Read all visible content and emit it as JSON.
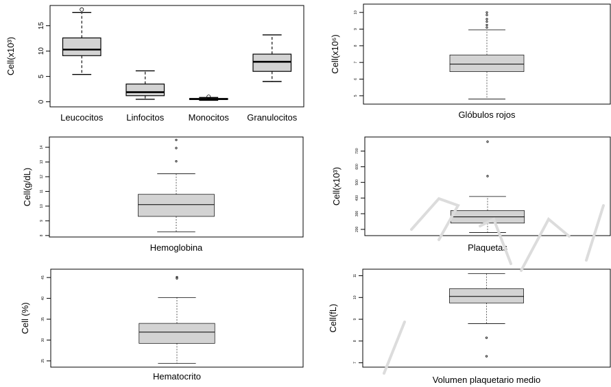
{
  "chart_data": [
    {
      "type": "box",
      "ylabel": "Cell(x10³)",
      "ylim": [
        -1,
        19
      ],
      "yticks": [
        "0",
        "5",
        "10",
        "15"
      ],
      "ytick_values": [
        0,
        5,
        10,
        15
      ],
      "categories": [
        "Leucocitos",
        "Linfocitos",
        "Monocitos",
        "Granulocitos"
      ],
      "boxes": [
        {
          "min": 5.4,
          "q1": 9.1,
          "median": 10.3,
          "q3": 12.6,
          "max": 17.6,
          "outliers": [
            18.2
          ]
        },
        {
          "min": 0.5,
          "q1": 1.2,
          "median": 1.9,
          "q3": 3.5,
          "max": 6.1,
          "outliers": []
        },
        {
          "min": 0.3,
          "q1": 0.45,
          "median": 0.55,
          "q3": 0.65,
          "max": 0.85,
          "outliers": [
            1.0
          ]
        },
        {
          "min": 4.0,
          "q1": 6.0,
          "median": 7.9,
          "q3": 9.4,
          "max": 13.2,
          "outliers": []
        }
      ]
    },
    {
      "type": "box",
      "ylabel": "Cell(x10⁶)",
      "xlabel": "Glóbulos rojos",
      "ylim": [
        4.5,
        10.5
      ],
      "yticks": [
        "5",
        "6",
        "7",
        "8",
        "9",
        "10"
      ],
      "ytick_values": [
        5,
        6,
        7,
        8,
        9,
        10
      ],
      "boxes": [
        {
          "min": 4.8,
          "q1": 6.45,
          "median": 6.9,
          "q3": 7.45,
          "max": 8.95,
          "outliers": [
            9.1,
            9.25,
            9.45,
            9.6,
            9.85,
            10.0
          ]
        }
      ]
    },
    {
      "type": "box",
      "ylabel": "Cell(g/dL)",
      "xlabel": "Hemoglobina",
      "ylim": [
        7.9,
        14.7
      ],
      "yticks": [
        "8",
        "9",
        "10",
        "11",
        "12",
        "13",
        "14"
      ],
      "ytick_values": [
        8,
        9,
        10,
        11,
        12,
        13,
        14
      ],
      "boxes": [
        {
          "min": 8.25,
          "q1": 9.3,
          "median": 10.1,
          "q3": 10.8,
          "max": 12.2,
          "outliers": [
            13.05,
            13.95,
            14.5
          ]
        }
      ]
    },
    {
      "type": "box",
      "ylabel": "Cell(x10³)",
      "xlabel": "Plaquetas",
      "ylim": [
        160,
        790
      ],
      "yticks": [
        "200",
        "300",
        "400",
        "500",
        "600",
        "700"
      ],
      "ytick_values": [
        200,
        300,
        400,
        500,
        600,
        700
      ],
      "boxes": [
        {
          "min": 180,
          "q1": 240,
          "median": 280,
          "q3": 320,
          "max": 410,
          "outliers": [
            540,
            760
          ]
        }
      ]
    },
    {
      "type": "box",
      "ylabel": "Cell (%)",
      "xlabel": "Hematocrito",
      "ylim": [
        23.5,
        47
      ],
      "yticks": [
        "25",
        "30",
        "35",
        "40",
        "45"
      ],
      "ytick_values": [
        25,
        30,
        35,
        40,
        45
      ],
      "boxes": [
        {
          "min": 24.4,
          "q1": 29.2,
          "median": 31.9,
          "q3": 34.0,
          "max": 40.2,
          "outliers": [
            44.8,
            45.1
          ]
        }
      ]
    },
    {
      "type": "box",
      "ylabel": "Cell(fL)",
      "xlabel": "Volumen plaquetario medio",
      "ylim": [
        6.8,
        11.3
      ],
      "yticks": [
        "7",
        "8",
        "9",
        "10",
        "11"
      ],
      "ytick_values": [
        7,
        8,
        9,
        10,
        11
      ],
      "boxes": [
        {
          "min": 8.8,
          "q1": 9.75,
          "median": 10.05,
          "q3": 10.4,
          "max": 11.1,
          "outliers": [
            8.15,
            7.3
          ]
        }
      ]
    }
  ]
}
